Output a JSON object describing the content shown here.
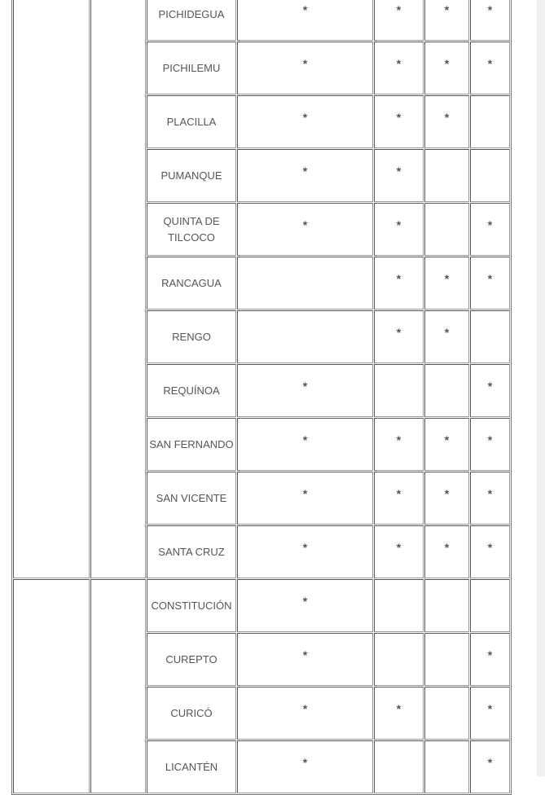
{
  "groups": [
    {
      "rows": [
        {
          "name": "PICHIDEGUA",
          "marks": [
            "*",
            "*",
            "*",
            "*"
          ]
        },
        {
          "name": "PICHILEMU",
          "marks": [
            "*",
            "*",
            "*",
            "*"
          ]
        },
        {
          "name": "PLACILLA",
          "marks": [
            "*",
            "*",
            "*",
            ""
          ]
        },
        {
          "name": "PUMANQUE",
          "marks": [
            "*",
            "*",
            "",
            ""
          ]
        },
        {
          "name": "QUINTA DE TILCOCO",
          "marks": [
            "*",
            "*",
            "",
            "*"
          ]
        },
        {
          "name": "RANCAGUA",
          "marks": [
            "",
            "*",
            "*",
            "*"
          ]
        },
        {
          "name": "RENGO",
          "marks": [
            "",
            "*",
            "*",
            ""
          ]
        },
        {
          "name": "REQUÍNOA",
          "marks": [
            "*",
            "",
            "",
            "*"
          ]
        },
        {
          "name": "SAN FERNANDO",
          "marks": [
            "*",
            "*",
            "*",
            "*"
          ]
        },
        {
          "name": "SAN VICENTE",
          "marks": [
            "*",
            "*",
            "*",
            "*"
          ]
        },
        {
          "name": "SANTA CRUZ",
          "marks": [
            "*",
            "*",
            "*",
            "*"
          ]
        }
      ]
    },
    {
      "rows": [
        {
          "name": "CONSTITUCIÓN",
          "marks": [
            "*",
            "",
            "",
            ""
          ]
        },
        {
          "name": "CUREPTO",
          "marks": [
            "*",
            "",
            "",
            "*"
          ]
        },
        {
          "name": "CURICÓ",
          "marks": [
            "*",
            "*",
            "",
            "*"
          ]
        },
        {
          "name": "LICANTÉN",
          "marks": [
            "*",
            "",
            "",
            "*"
          ]
        }
      ]
    }
  ]
}
